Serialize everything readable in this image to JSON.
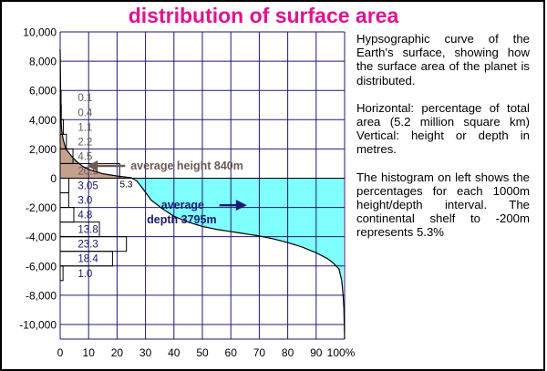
{
  "chart_data": {
    "type": "area",
    "title": "distribution of surface area",
    "xlabel": "",
    "ylabel": "",
    "xlim": [
      0,
      100
    ],
    "ylim": [
      -11000,
      10000
    ],
    "x_ticks": [
      "0",
      "10",
      "20",
      "30",
      "40",
      "50",
      "60",
      "70",
      "80",
      "90",
      "100%"
    ],
    "x_tick_values": [
      0,
      10,
      20,
      30,
      40,
      50,
      60,
      70,
      80,
      90,
      100
    ],
    "y_ticks": [
      "10,000",
      "8,000",
      "6,000",
      "4,000",
      "2,000",
      "0",
      "-2,000",
      "-4,000",
      "-6,000",
      "-8,000",
      "-10,000"
    ],
    "y_tick_values": [
      10000,
      8000,
      6000,
      4000,
      2000,
      0,
      -2000,
      -4000,
      -6000,
      -8000,
      -10000
    ],
    "grid": true,
    "hypsographic_curve": {
      "x": [
        0,
        0.1,
        0.5,
        1,
        2,
        4,
        6,
        8,
        10,
        12,
        15,
        20,
        25,
        27,
        29,
        32,
        36,
        40,
        45,
        50,
        55,
        60,
        65,
        70,
        75,
        80,
        85,
        90,
        94,
        96,
        98,
        99,
        99.7,
        100
      ],
      "y": [
        8800,
        4800,
        3300,
        2700,
        2000,
        1500,
        1100,
        800,
        600,
        480,
        300,
        150,
        30,
        -200,
        -700,
        -1500,
        -2100,
        -2600,
        -3000,
        -3300,
        -3500,
        -3650,
        -3800,
        -3950,
        -4150,
        -4400,
        -4700,
        -5100,
        -5500,
        -5800,
        -6200,
        -7000,
        -8500,
        -11000
      ]
    },
    "histogram": {
      "unit": "% of total area per 1000 m interval",
      "bins": [
        {
          "range": [
            5000,
            6000
          ],
          "label": "0.1",
          "value": 0.1
        },
        {
          "range": [
            4000,
            5000
          ],
          "label": "0.4",
          "value": 0.4
        },
        {
          "range": [
            3000,
            4000
          ],
          "label": "1.1",
          "value": 1.1
        },
        {
          "range": [
            2000,
            3000
          ],
          "label": "2.2",
          "value": 2.2
        },
        {
          "range": [
            1000,
            2000
          ],
          "label": "4.5",
          "value": 4.5
        },
        {
          "range": [
            0,
            1000
          ],
          "label": "20.9",
          "value": 20.9
        },
        {
          "range": [
            -1000,
            0
          ],
          "label": "3.05",
          "value": 3.05
        },
        {
          "range": [
            -2000,
            -1000
          ],
          "label": "3.0",
          "value": 3.0
        },
        {
          "range": [
            -3000,
            -2000
          ],
          "label": "4.8",
          "value": 4.8
        },
        {
          "range": [
            -4000,
            -3000
          ],
          "label": "13.8",
          "value": 13.8
        },
        {
          "range": [
            -5000,
            -4000
          ],
          "label": "23.3",
          "value": 23.3
        },
        {
          "range": [
            -6000,
            -5000
          ],
          "label": "18.4",
          "value": 18.4
        },
        {
          "range": [
            -7000,
            -6000
          ],
          "label": "1.0",
          "value": 1.0
        }
      ]
    },
    "continental_shelf": {
      "label": "5.3",
      "x": 21,
      "y": -200
    },
    "annotations": [
      {
        "text": "average height 840m",
        "value": 840,
        "arrow_x": 10
      },
      {
        "lines": [
          "average",
          "depth 3795m"
        ],
        "value": -3795,
        "arrow_x": 65
      }
    ],
    "colors": {
      "land_fill": "#c4a08e",
      "ocean_fill": "#80ffff",
      "grid": "#1e1a7a",
      "title": "#e4108f",
      "land_label": "#6a5a52",
      "ocean_label": "#1a1a6e",
      "histogram_bars": "#000000"
    }
  },
  "caption": {
    "paragraphs": [
      "Hypsographic curve of the Earth's surface, showing how the surface area of the planet is distributed.",
      "Horizontal: percentage of total area (5.2 million square km) Vertical: height or depth in metres.",
      "The histogram on left shows the percentages for each 1000m height/depth interval. The continental shelf to -200m represents 5.3%"
    ]
  }
}
